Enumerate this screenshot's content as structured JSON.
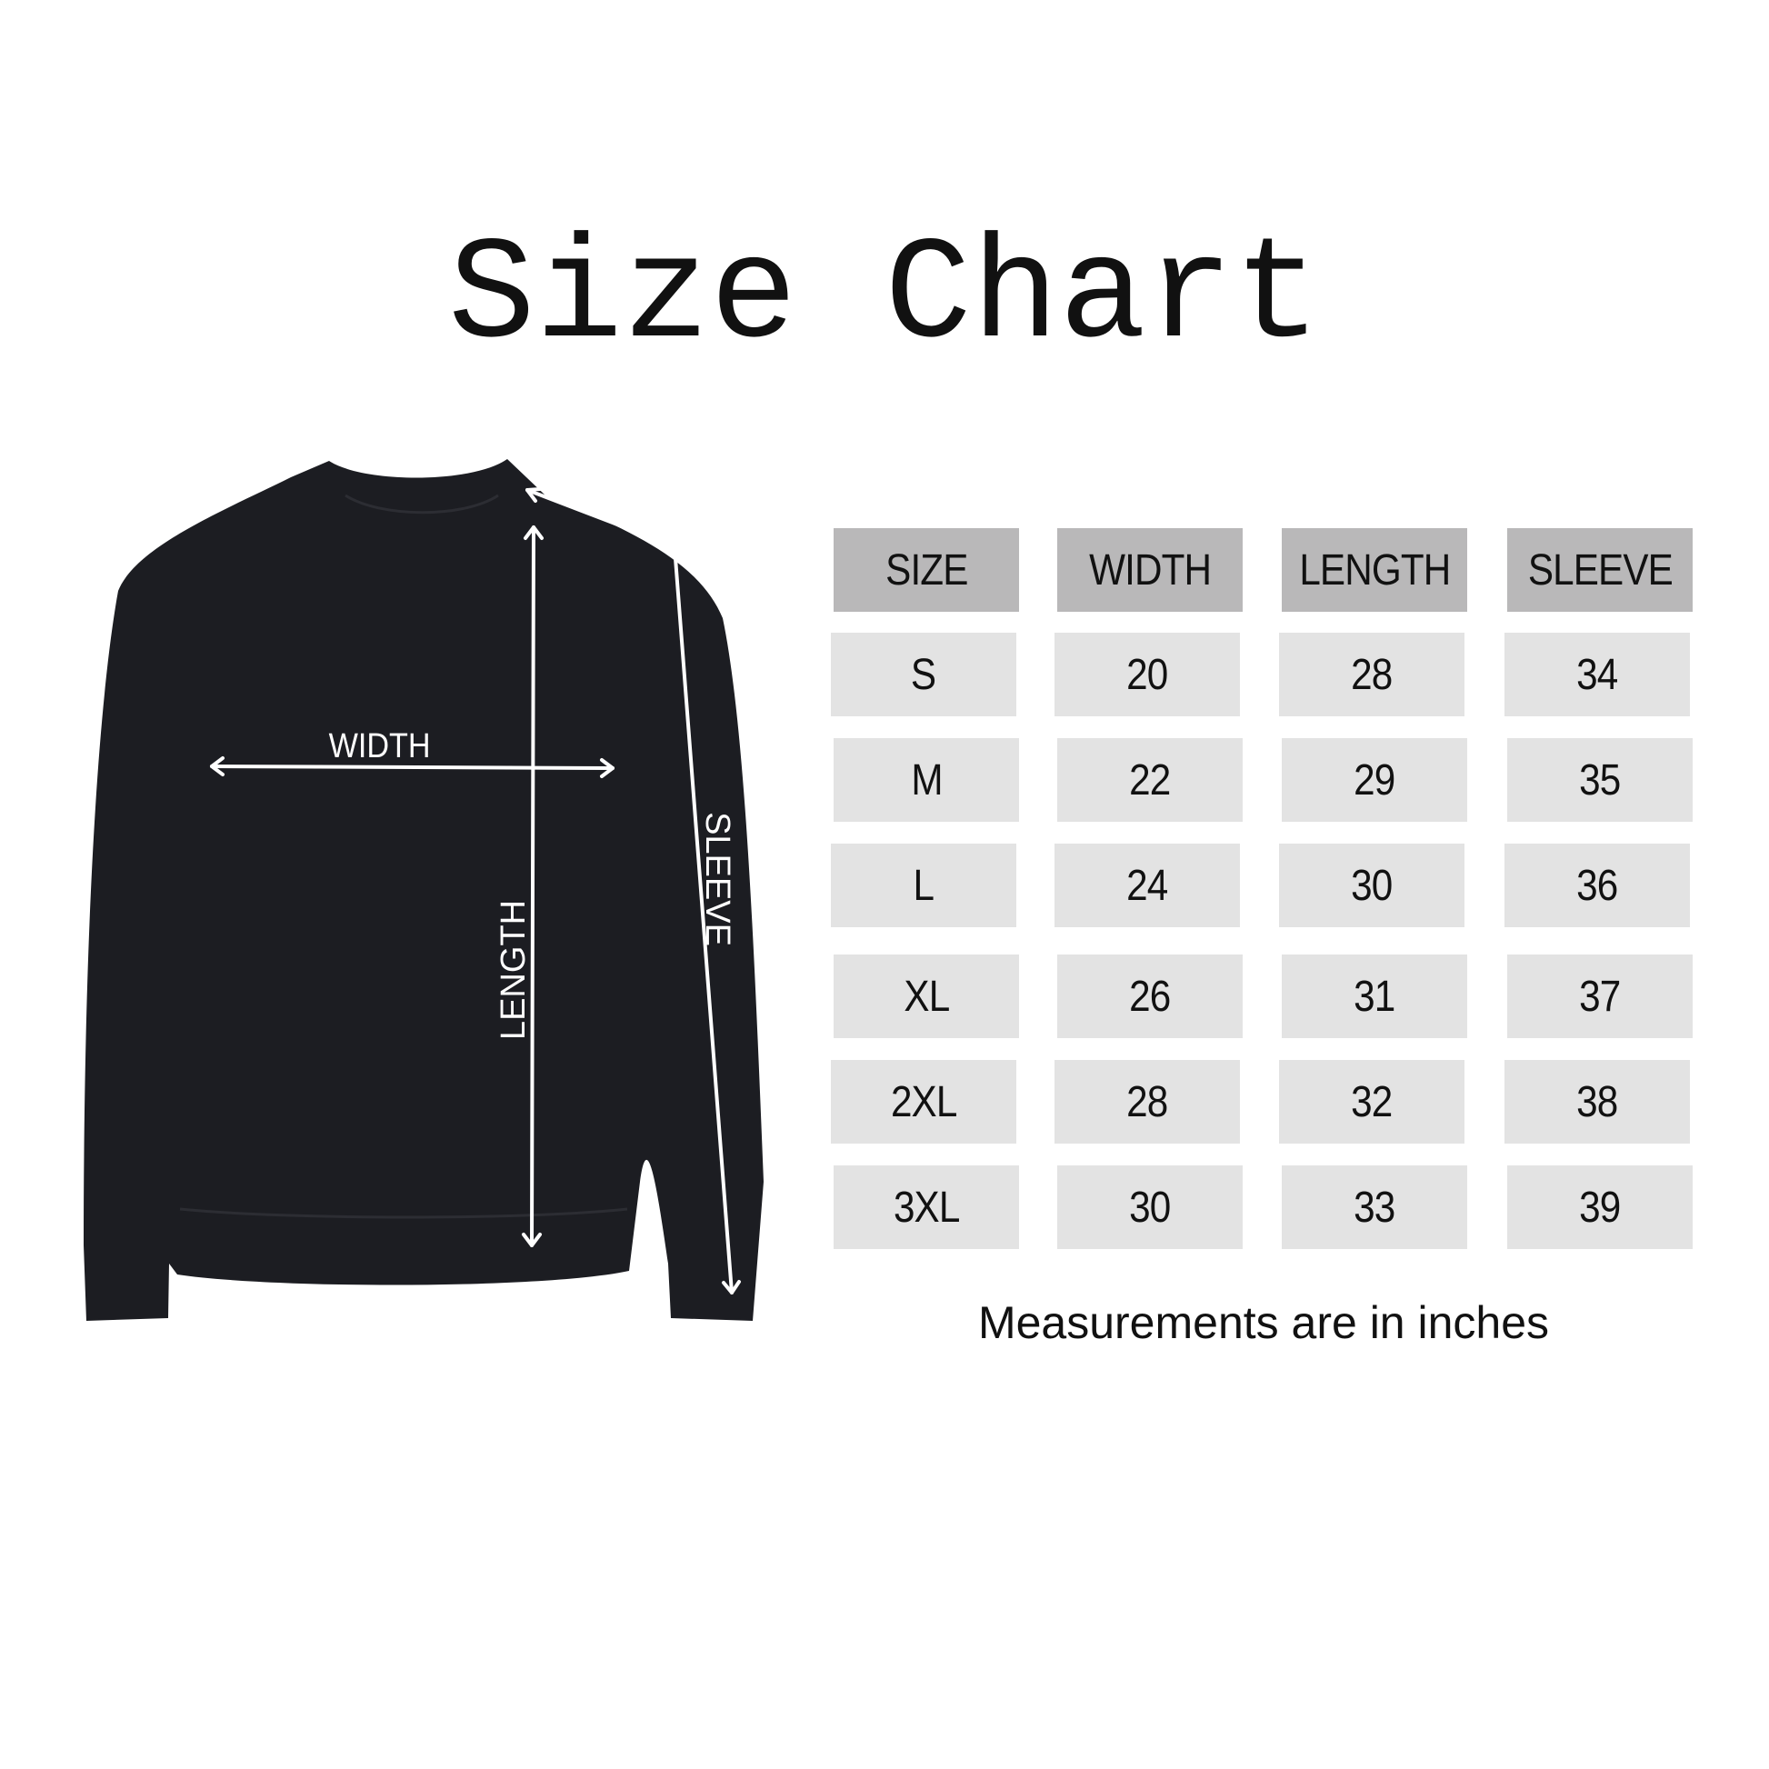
{
  "title": "Size Chart",
  "diagram": {
    "garment": "sweatshirt",
    "garment_color": "#1c1d22",
    "labels": {
      "width": "WIDTH",
      "length": "LENGTH",
      "sleeve": "SLEEVE"
    }
  },
  "table": {
    "headers": [
      "SIZE",
      "WIDTH",
      "LENGTH",
      "SLEEVE"
    ],
    "rows": [
      [
        "S",
        "20",
        "28",
        "34"
      ],
      [
        "M",
        "22",
        "29",
        "35"
      ],
      [
        "L",
        "24",
        "30",
        "36"
      ],
      [
        "XL",
        "26",
        "31",
        "37"
      ],
      [
        "2XL",
        "28",
        "32",
        "38"
      ],
      [
        "3XL",
        "30",
        "33",
        "39"
      ]
    ],
    "header_color": "#b9b8b9",
    "cell_color": "#e3e3e3"
  },
  "note": "Measurements are in inches"
}
